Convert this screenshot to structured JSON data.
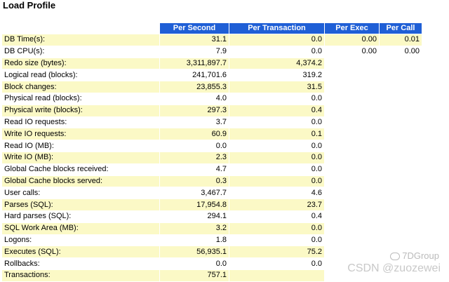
{
  "title": "Load Profile",
  "columns": [
    "",
    "Per Second",
    "Per Transaction",
    "Per Exec",
    "Per Call"
  ],
  "rows": [
    {
      "stat": "DB Time(s):",
      "per_second": "31.1",
      "per_transaction": "0.0",
      "per_exec": "0.00",
      "per_call": "0.01"
    },
    {
      "stat": "DB CPU(s):",
      "per_second": "7.9",
      "per_transaction": "0.0",
      "per_exec": "0.00",
      "per_call": "0.00"
    },
    {
      "stat": "Redo size (bytes):",
      "per_second": "3,311,897.7",
      "per_transaction": "4,374.2",
      "per_exec": "",
      "per_call": ""
    },
    {
      "stat": "Logical read (blocks):",
      "per_second": "241,701.6",
      "per_transaction": "319.2",
      "per_exec": "",
      "per_call": ""
    },
    {
      "stat": "Block changes:",
      "per_second": "23,855.3",
      "per_transaction": "31.5",
      "per_exec": "",
      "per_call": ""
    },
    {
      "stat": "Physical read (blocks):",
      "per_second": "4.0",
      "per_transaction": "0.0",
      "per_exec": "",
      "per_call": ""
    },
    {
      "stat": "Physical write (blocks):",
      "per_second": "297.3",
      "per_transaction": "0.4",
      "per_exec": "",
      "per_call": ""
    },
    {
      "stat": "Read IO requests:",
      "per_second": "3.7",
      "per_transaction": "0.0",
      "per_exec": "",
      "per_call": ""
    },
    {
      "stat": "Write IO requests:",
      "per_second": "60.9",
      "per_transaction": "0.1",
      "per_exec": "",
      "per_call": ""
    },
    {
      "stat": "Read IO (MB):",
      "per_second": "0.0",
      "per_transaction": "0.0",
      "per_exec": "",
      "per_call": ""
    },
    {
      "stat": "Write IO (MB):",
      "per_second": "2.3",
      "per_transaction": "0.0",
      "per_exec": "",
      "per_call": ""
    },
    {
      "stat": "Global Cache blocks received:",
      "per_second": "4.7",
      "per_transaction": "0.0",
      "per_exec": "",
      "per_call": ""
    },
    {
      "stat": "Global Cache blocks served:",
      "per_second": "0.3",
      "per_transaction": "0.0",
      "per_exec": "",
      "per_call": ""
    },
    {
      "stat": "User calls:",
      "per_second": "3,467.7",
      "per_transaction": "4.6",
      "per_exec": "",
      "per_call": ""
    },
    {
      "stat": "Parses (SQL):",
      "per_second": "17,954.8",
      "per_transaction": "23.7",
      "per_exec": "",
      "per_call": ""
    },
    {
      "stat": "Hard parses (SQL):",
      "per_second": "294.1",
      "per_transaction": "0.4",
      "per_exec": "",
      "per_call": ""
    },
    {
      "stat": "SQL Work Area (MB):",
      "per_second": "3.2",
      "per_transaction": "0.0",
      "per_exec": "",
      "per_call": ""
    },
    {
      "stat": "Logons:",
      "per_second": "1.8",
      "per_transaction": "0.0",
      "per_exec": "",
      "per_call": ""
    },
    {
      "stat": "Executes (SQL):",
      "per_second": "56,935.1",
      "per_transaction": "75.2",
      "per_exec": "",
      "per_call": ""
    },
    {
      "stat": "Rollbacks:",
      "per_second": "0.0",
      "per_transaction": "0.0",
      "per_exec": "",
      "per_call": ""
    },
    {
      "stat": "Transactions:",
      "per_second": "757.1",
      "per_transaction": "",
      "per_exec": "",
      "per_call": ""
    }
  ],
  "watermark": {
    "line1": "7DGroup",
    "line2": "CSDN @zuozewei"
  },
  "colors": {
    "header_bg": "#1f5fd6",
    "row_highlight": "#fbf9c6"
  }
}
